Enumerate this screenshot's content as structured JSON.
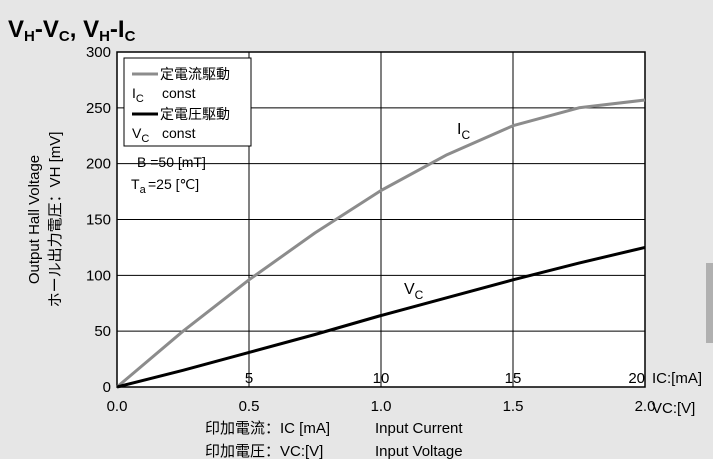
{
  "title": {
    "main": "VH-VC, VH-IC",
    "parts": [
      {
        "base": "V",
        "sub": "H"
      },
      {
        "text": "-"
      },
      {
        "base": "V",
        "sub": "C"
      },
      {
        "text": ", "
      },
      {
        "base": "V",
        "sub": "H"
      },
      {
        "text": "-"
      },
      {
        "base": "I",
        "sub": "C"
      }
    ]
  },
  "chart_data": {
    "type": "line",
    "title": "VH-VC, VH-IC",
    "ylabel_en": "Output Hall Voltage",
    "ylabel_jp": "ホール出力電圧：VH [mV]",
    "xlabel_ic_jp": "印加電流：IC [mA]",
    "xlabel_ic_en": "Input Current",
    "xlabel_vc_jp": "印加電圧：VC:[V]",
    "xlabel_vc_en": "Input Voltage",
    "ic_axis_unit": "IC:[mA]",
    "vc_axis_unit": "VC:[V]",
    "ylim": [
      0,
      300
    ],
    "ic_xlim": [
      0,
      20
    ],
    "vc_xlim": [
      0,
      2.0
    ],
    "y_ticks": [
      "0",
      "50",
      "100",
      "150",
      "200",
      "250",
      "300"
    ],
    "ic_ticks": [
      "5",
      "10",
      "15",
      "20"
    ],
    "vc_ticks": [
      "0.0",
      "0.5",
      "1.0",
      "1.5",
      "2.0"
    ],
    "grid": true,
    "legend_position": "top-left",
    "legend": [
      {
        "jp": "定電流駆動",
        "en": "IC const",
        "color": "#8c8c8c"
      },
      {
        "jp": "定電圧駆動",
        "en": "VC const",
        "color": "#000000"
      }
    ],
    "conditions": [
      "B =50 [mT]",
      "Ta =25 [℃]"
    ],
    "series": [
      {
        "name": "IC",
        "color": "#8c8c8c",
        "x_axis": "IC",
        "x": [
          0,
          2.5,
          5,
          7.5,
          10,
          12.5,
          15,
          17.5,
          20
        ],
        "y": [
          0,
          50,
          96,
          138,
          176,
          208,
          234,
          250,
          257
        ]
      },
      {
        "name": "VC",
        "color": "#000000",
        "x_axis": "VC",
        "x": [
          0,
          0.25,
          0.5,
          0.75,
          1.0,
          1.25,
          1.5,
          1.75,
          2.0
        ],
        "y": [
          0,
          15,
          31,
          47,
          64,
          80,
          96,
          111,
          125
        ]
      }
    ],
    "curve_labels": [
      {
        "base": "I",
        "sub": "C"
      },
      {
        "base": "V",
        "sub": "C"
      }
    ]
  }
}
